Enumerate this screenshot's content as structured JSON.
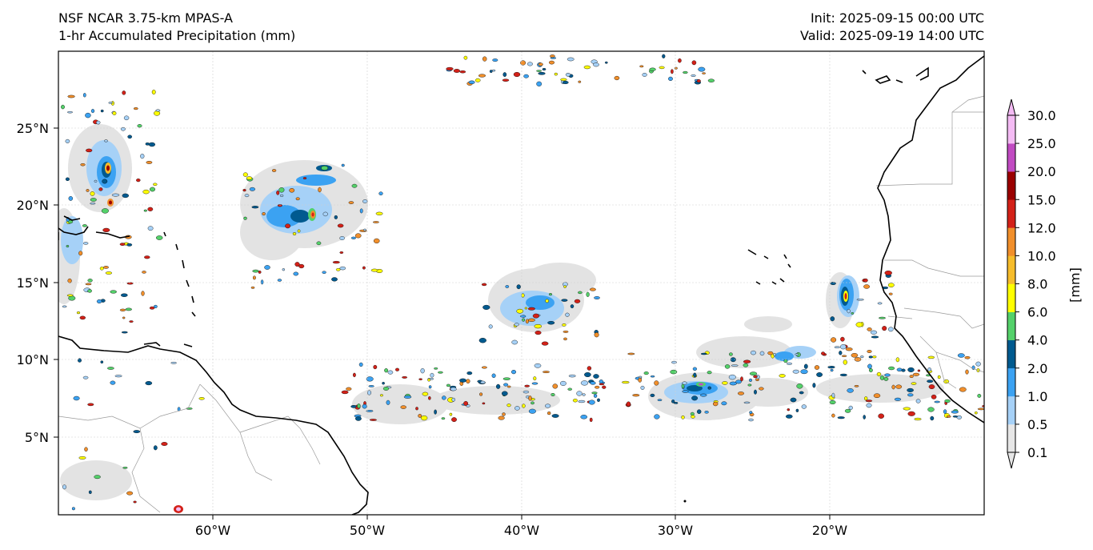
{
  "title": {
    "left_line1": "NSF NCAR 3.75-km MPAS-A",
    "left_line2": "1-hr Accumulated Precipitation (mm)",
    "right_line1": "Init: 2025-09-15 00:00 UTC",
    "right_line2": "Valid: 2025-09-19 14:00 UTC"
  },
  "map": {
    "projection": "PlateCarree",
    "lon_range": [
      -70,
      -10
    ],
    "lat_range": [
      0,
      30
    ],
    "x_ticks": [
      "60°W",
      "50°W",
      "40°W",
      "30°W",
      "20°W"
    ],
    "y_ticks": [
      "5°N",
      "10°N",
      "15°N",
      "20°N",
      "25°N"
    ],
    "gridlines": true,
    "coastlines": true,
    "borders": true
  },
  "colorbar": {
    "label": "[mm]",
    "levels": [
      "0.1",
      "0.5",
      "1.0",
      "2.0",
      "4.0",
      "6.0",
      "8.0",
      "10.0",
      "12.0",
      "15.0",
      "20.0",
      "25.0",
      "30.0"
    ],
    "colors": [
      "#e6e6e6",
      "#a6d1f7",
      "#3ba2f2",
      "#005a8f",
      "#54d16a",
      "#ffff00",
      "#f6bc2b",
      "#f18f2b",
      "#d32118",
      "#9a0000",
      "#c14bc2",
      "#f4bbf4"
    ],
    "extend": "both"
  }
}
